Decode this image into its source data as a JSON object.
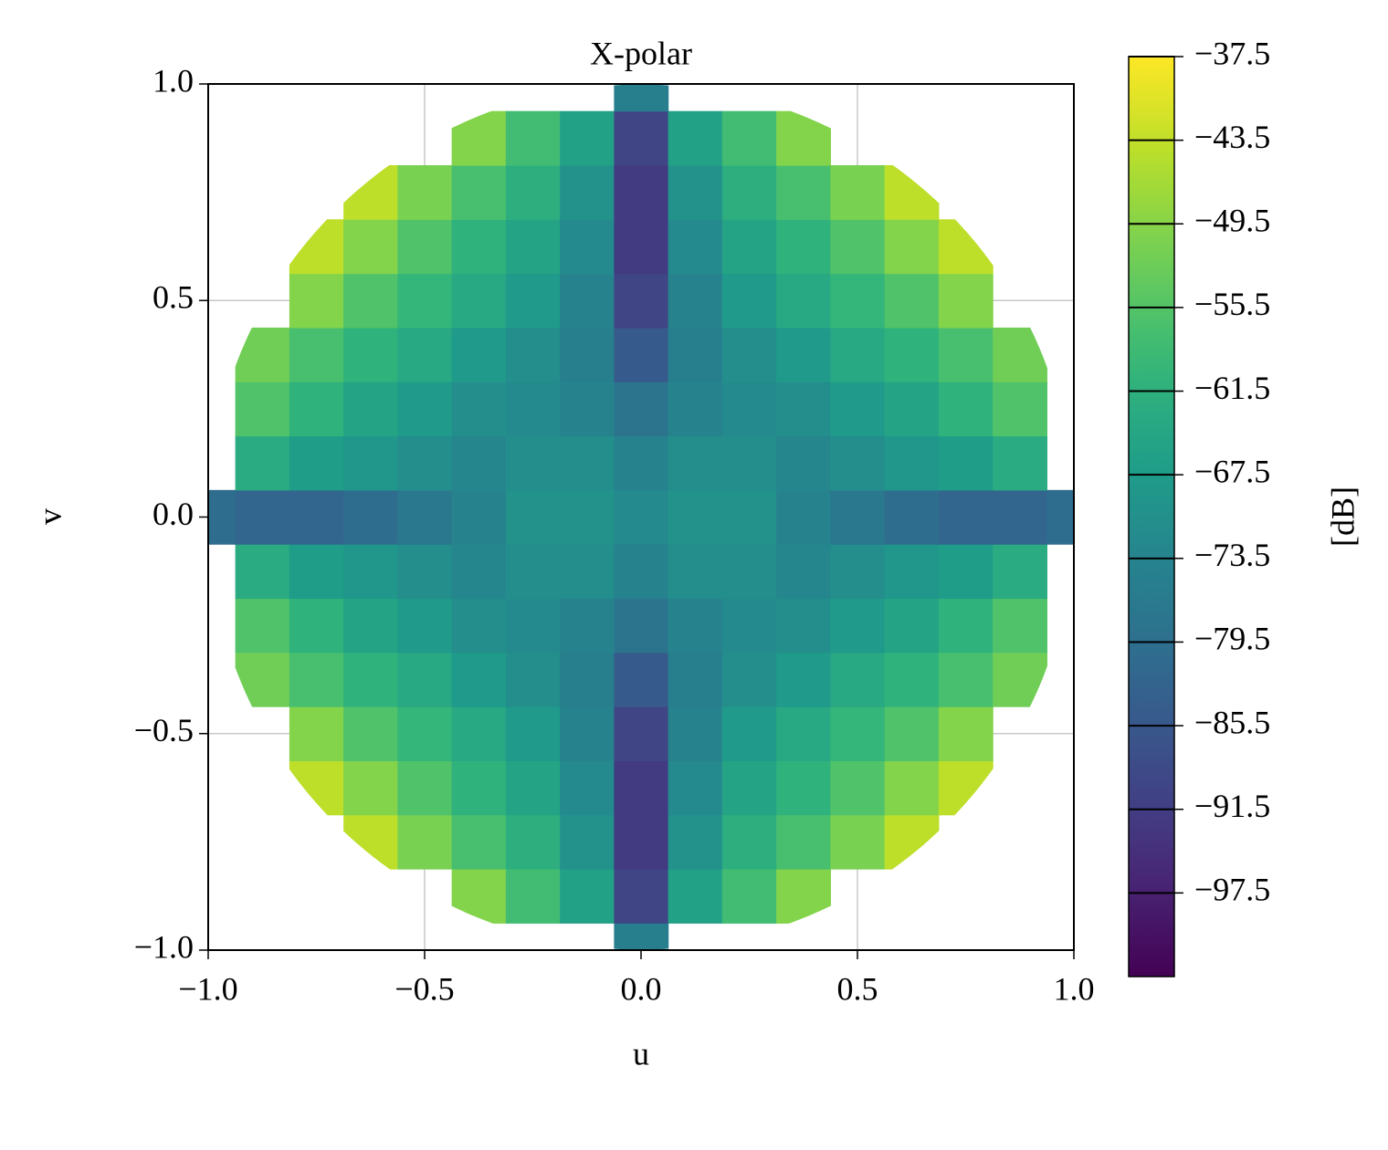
{
  "chart_data": {
    "type": "contourf",
    "title": "X-polar",
    "xlabel": "u",
    "ylabel": "v",
    "colorbar_label": "[dB]",
    "x": [
      -1,
      -0.875,
      -0.75,
      -0.625,
      -0.5,
      -0.375,
      -0.25,
      -0.125,
      0,
      0.125,
      0.25,
      0.375,
      0.5,
      0.625,
      0.75,
      0.875,
      1
    ],
    "y": [
      -1,
      -0.875,
      -0.75,
      -0.625,
      -0.5,
      -0.375,
      -0.25,
      -0.125,
      0,
      0.125,
      0.25,
      0.375,
      0.5,
      0.625,
      0.75,
      0.875,
      1
    ],
    "z": [
      [
        null,
        null,
        null,
        null,
        null,
        null,
        null,
        null,
        -75,
        null,
        null,
        null,
        null,
        null,
        null,
        null,
        null
      ],
      [
        null,
        null,
        null,
        null,
        null,
        -50,
        -58,
        -66,
        -90,
        -66,
        -58,
        -50,
        null,
        null,
        null,
        null,
        null
      ],
      [
        null,
        null,
        null,
        -44,
        -51,
        -57,
        -62,
        -70,
        -92,
        -70,
        -62,
        -57,
        -51,
        -44,
        null,
        null,
        null
      ],
      [
        null,
        null,
        -44,
        -50,
        -56,
        -61,
        -65,
        -72,
        -92,
        -72,
        -65,
        -61,
        -56,
        -50,
        -44,
        null,
        null
      ],
      [
        null,
        null,
        -50,
        -56,
        -60,
        -64,
        -68,
        -74,
        -90,
        -74,
        -68,
        -64,
        -60,
        -56,
        -50,
        null,
        null
      ],
      [
        null,
        -52,
        -57,
        -61,
        -64,
        -68,
        -71,
        -75,
        -85,
        -75,
        -71,
        -68,
        -64,
        -61,
        -57,
        -52,
        null
      ],
      [
        null,
        -56,
        -61,
        -65,
        -68,
        -71,
        -72,
        -74,
        -78,
        -74,
        -72,
        -71,
        -68,
        -65,
        -61,
        -56,
        null
      ],
      [
        null,
        -63,
        -67,
        -69,
        -71,
        -73,
        -71,
        -71,
        -74,
        -71,
        -71,
        -73,
        -71,
        -69,
        -67,
        -63,
        null
      ],
      [
        -80,
        -82,
        -82,
        -80,
        -77,
        -74,
        -70,
        -70,
        -72,
        -70,
        -70,
        -74,
        -77,
        -80,
        -82,
        -82,
        -80
      ],
      [
        null,
        -63,
        -67,
        -69,
        -71,
        -73,
        -71,
        -71,
        -74,
        -71,
        -71,
        -73,
        -71,
        -69,
        -67,
        -63,
        null
      ],
      [
        null,
        -56,
        -61,
        -65,
        -68,
        -71,
        -72,
        -74,
        -78,
        -74,
        -72,
        -71,
        -68,
        -65,
        -61,
        -56,
        null
      ],
      [
        null,
        -52,
        -57,
        -61,
        -64,
        -68,
        -71,
        -75,
        -85,
        -75,
        -71,
        -68,
        -64,
        -61,
        -57,
        -52,
        null
      ],
      [
        null,
        null,
        -50,
        -56,
        -60,
        -64,
        -68,
        -74,
        -90,
        -74,
        -68,
        -64,
        -60,
        -56,
        -50,
        null,
        null
      ],
      [
        null,
        null,
        -44,
        -50,
        -56,
        -61,
        -65,
        -72,
        -92,
        -72,
        -65,
        -61,
        -56,
        -50,
        -44,
        null,
        null
      ],
      [
        null,
        null,
        null,
        -44,
        -51,
        -57,
        -62,
        -70,
        -92,
        -70,
        -62,
        -57,
        -51,
        -44,
        null,
        null,
        null
      ],
      [
        null,
        null,
        null,
        null,
        null,
        -50,
        -58,
        -66,
        -90,
        -66,
        -58,
        -50,
        null,
        null,
        null,
        null,
        null
      ],
      [
        null,
        null,
        null,
        null,
        null,
        null,
        null,
        null,
        -75,
        null,
        null,
        null,
        null,
        null,
        null,
        null,
        null
      ]
    ],
    "xlim": [
      -1,
      1
    ],
    "ylim": [
      -1,
      1
    ],
    "xticks": [
      {
        "value": -1,
        "label": "−1.0"
      },
      {
        "value": -0.5,
        "label": "−0.5"
      },
      {
        "value": 0,
        "label": "0.0"
      },
      0.5,
      {
        "value": 1,
        "label": "1.0"
      }
    ],
    "yticks": [
      {
        "value": -1,
        "label": "−1.0"
      },
      {
        "value": -0.5,
        "label": "−0.5"
      },
      {
        "value": 0,
        "label": "0.0"
      },
      0.5,
      {
        "value": 1,
        "label": "1.0"
      }
    ],
    "grid": true,
    "colormap": "viridis",
    "zlim": [
      -103.5,
      -37.5
    ],
    "zticks": [
      {
        "value": -97.5,
        "label": "−97.5"
      },
      {
        "value": -91.5,
        "label": "−91.5"
      },
      {
        "value": -85.5,
        "label": "−85.5"
      },
      {
        "value": -79.5,
        "label": "−79.5"
      },
      {
        "value": -73.5,
        "label": "−73.5"
      },
      {
        "value": -67.5,
        "label": "−67.5"
      },
      {
        "value": -61.5,
        "label": "−61.5"
      },
      {
        "value": -55.5,
        "label": "−55.5"
      },
      {
        "value": -49.5,
        "label": "−49.5"
      },
      {
        "value": -43.5,
        "label": "−43.5"
      },
      {
        "value": -37.5,
        "label": "−37.5"
      }
    ]
  }
}
